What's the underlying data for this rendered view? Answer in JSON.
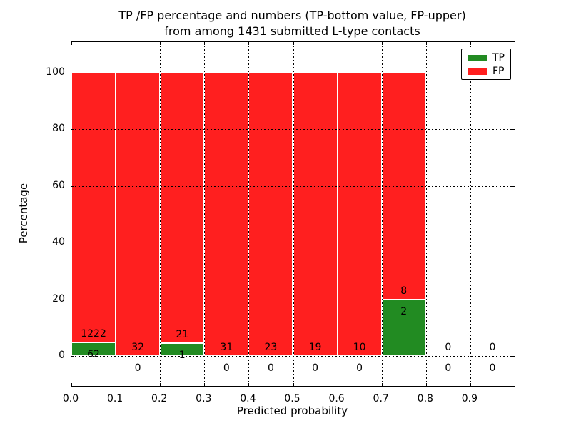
{
  "chart_data": {
    "type": "bar",
    "stacked": true,
    "title_line1": "TP /FP percentage and numbers (TP-bottom value, FP-upper)",
    "title_line2": "from among 1431 submitted L-type contacts",
    "xlabel": "Predicted probability",
    "ylabel": "Percentage",
    "x_tick_labels": [
      "0.0",
      "0.1",
      "0.2",
      "0.3",
      "0.4",
      "0.5",
      "0.6",
      "0.7",
      "0.8",
      "0.9"
    ],
    "y_tick_values": [
      0,
      20,
      40,
      60,
      80,
      100
    ],
    "xlim": [
      0.0,
      1.0
    ],
    "grid": "dotted",
    "legend_position": "upper right",
    "bar_unit": "percent of bin (TP+FP stack to 100%)",
    "bins": [
      {
        "x_start": 0.0,
        "x_end": 0.1,
        "tp": 62,
        "fp": 1222
      },
      {
        "x_start": 0.1,
        "x_end": 0.2,
        "tp": 0,
        "fp": 32
      },
      {
        "x_start": 0.2,
        "x_end": 0.3,
        "tp": 1,
        "fp": 21
      },
      {
        "x_start": 0.3,
        "x_end": 0.4,
        "tp": 0,
        "fp": 31
      },
      {
        "x_start": 0.4,
        "x_end": 0.5,
        "tp": 0,
        "fp": 23
      },
      {
        "x_start": 0.5,
        "x_end": 0.6,
        "tp": 0,
        "fp": 19
      },
      {
        "x_start": 0.6,
        "x_end": 0.7,
        "tp": 0,
        "fp": 10
      },
      {
        "x_start": 0.7,
        "x_end": 0.8,
        "tp": 2,
        "fp": 8
      },
      {
        "x_start": 0.8,
        "x_end": 0.9,
        "tp": 0,
        "fp": 0
      },
      {
        "x_start": 0.9,
        "x_end": 1.0,
        "tp": 0,
        "fp": 0
      }
    ]
  },
  "legend": {
    "items": [
      {
        "label": "TP",
        "color": "#228b22"
      },
      {
        "label": "FP",
        "color": "#ff1f1f"
      }
    ]
  },
  "colors": {
    "tp_green": "#228b22",
    "fp_red": "#ff1f1f",
    "grid": "#000000",
    "background": "#ffffff"
  }
}
